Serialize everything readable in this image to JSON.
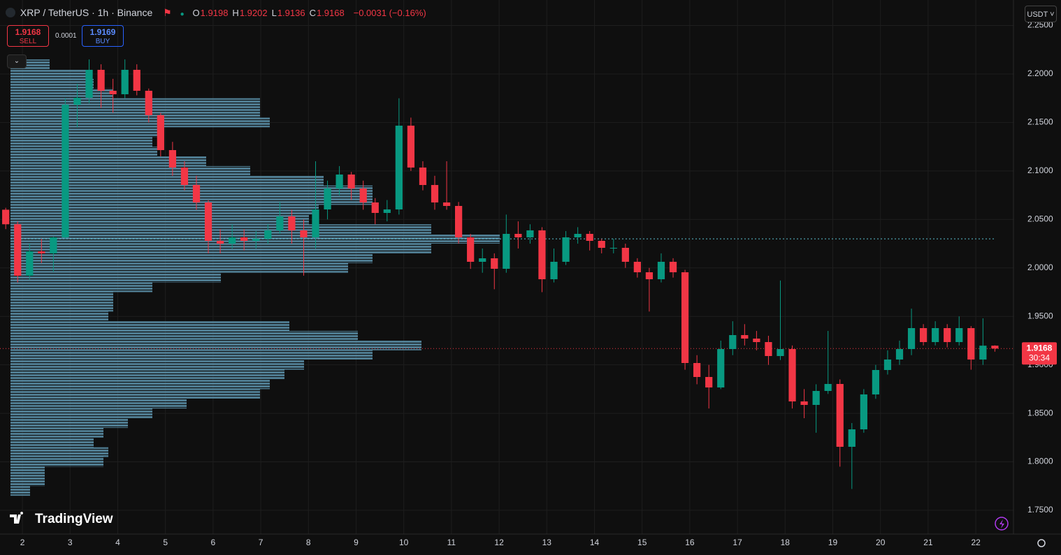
{
  "header": {
    "symbol": "XRP / TetherUS · 1h · Binance",
    "ohlc": [
      {
        "label": "O",
        "value": "1.9198"
      },
      {
        "label": "H",
        "value": "1.9202"
      },
      {
        "label": "L",
        "value": "1.9136"
      },
      {
        "label": "C",
        "value": "1.9168"
      }
    ],
    "change": "−0.0031 (−0.16%)",
    "sell_price": "1.9168",
    "sell_label": "SELL",
    "spread": "0.0001",
    "buy_price": "1.9169",
    "buy_label": "BUY",
    "currency": "USDT",
    "brand": "TradingView"
  },
  "chart_data": {
    "type": "candlestick",
    "up_color": "#089981",
    "down_color": "#f23645",
    "x": [
      1.65,
      1.9,
      2.15,
      2.4,
      2.65,
      2.9,
      3.15,
      3.4,
      3.65,
      3.9,
      4.15,
      4.4,
      4.65,
      4.9,
      5.15,
      5.4,
      5.65,
      5.9,
      6.15,
      6.4,
      6.65,
      6.9,
      7.15,
      7.4,
      7.65,
      7.9,
      8.15,
      8.4,
      8.65,
      8.9,
      9.15,
      9.4,
      9.65,
      9.9,
      10.15,
      10.4,
      10.65,
      10.9,
      11.15,
      11.4,
      11.65,
      11.9,
      12.15,
      12.4,
      12.65,
      12.9,
      13.15,
      13.4,
      13.65,
      13.9,
      14.15,
      14.4,
      14.65,
      14.9,
      15.15,
      15.4,
      15.65,
      15.9,
      16.15,
      16.4,
      16.65,
      16.9,
      17.15,
      17.4,
      17.65,
      17.9,
      18.15,
      18.4,
      18.65,
      18.9,
      19.15,
      19.4,
      19.65,
      19.9,
      20.15,
      20.4,
      20.65,
      20.9,
      21.15,
      21.4,
      21.65,
      21.9,
      22.15,
      22.4
    ],
    "open": [
      2.06,
      2.045,
      1.9919,
      2.0171,
      2.015,
      2.0315,
      2.1683,
      2.1755,
      2.2043,
      2.1827,
      2.1791,
      2.2043,
      2.1827,
      2.1575,
      2.1215,
      2.1035,
      2.0855,
      2.0675,
      2.0279,
      2.025,
      2.0315,
      2.0279,
      2.03,
      2.0387,
      2.0531,
      2.0387,
      2.0315,
      2.0603,
      2.0819,
      2.0963,
      2.0819,
      2.0675,
      2.0567,
      2.0603,
      2.1467,
      2.1035,
      2.0855,
      2.0675,
      2.0639,
      2.0315,
      2.0063,
      2.0099,
      1.9991,
      2.0351,
      2.0315,
      2.0387,
      1.9883,
      2.0063,
      2.0315,
      2.0351,
      2.0279,
      2.0207,
      2.0207,
      2.0063,
      1.9955,
      1.9883,
      2.0063,
      1.9955,
      1.9019,
      1.8875,
      1.8767,
      1.9163,
      1.9307,
      1.9271,
      1.9235,
      1.9091,
      1.9163,
      1.8623,
      1.8587,
      1.8731,
      1.8803,
      1.8155,
      1.8335,
      1.8695,
      1.8947,
      1.9055,
      1.9163,
      1.9379,
      1.9235,
      1.9379,
      1.9235,
      1.9379,
      1.9055,
      1.9198
    ],
    "high": [
      2.062,
      2.048,
      2.025,
      2.03,
      2.032,
      2.175,
      2.19,
      2.215,
      2.21,
      2.195,
      2.215,
      2.21,
      2.185,
      2.16,
      2.13,
      2.11,
      2.095,
      2.07,
      2.04,
      2.045,
      2.04,
      2.038,
      2.045,
      2.068,
      2.06,
      2.05,
      2.11,
      2.09,
      2.105,
      2.099,
      2.09,
      2.072,
      2.07,
      2.175,
      2.155,
      2.11,
      2.095,
      2.11,
      2.068,
      2.035,
      2.02,
      2.015,
      2.055,
      2.048,
      2.045,
      2.042,
      2.02,
      2.038,
      2.042,
      2.038,
      2.03,
      2.03,
      2.025,
      2.01,
      2.0,
      2.015,
      2.01,
      1.998,
      1.91,
      1.9,
      1.925,
      1.945,
      1.942,
      1.935,
      1.93,
      1.987,
      1.92,
      1.875,
      1.88,
      1.935,
      1.885,
      1.84,
      1.875,
      1.9,
      1.915,
      1.925,
      1.958,
      1.942,
      1.945,
      1.942,
      1.95,
      1.94,
      1.948,
      1.9202
    ],
    "low": [
      2.04,
      1.985,
      1.988,
      2.005,
      1.996,
      2.03,
      2.145,
      2.17,
      2.165,
      2.16,
      2.175,
      2.178,
      2.15,
      2.115,
      2.095,
      2.08,
      2.06,
      2.015,
      2.015,
      2.02,
      2.018,
      2.02,
      2.025,
      2.035,
      2.025,
      1.992,
      2.02,
      2.05,
      2.075,
      2.07,
      2.06,
      2.045,
      2.048,
      2.055,
      2.1,
      2.08,
      2.06,
      2.06,
      2.025,
      1.999,
      1.995,
      1.978,
      1.995,
      2.02,
      2.025,
      1.975,
      1.985,
      2.003,
      2.025,
      2.018,
      2.015,
      2.015,
      2.0,
      1.99,
      1.955,
      1.985,
      1.99,
      1.895,
      1.88,
      1.855,
      1.875,
      1.91,
      1.92,
      1.915,
      1.9,
      1.905,
      1.855,
      1.845,
      1.83,
      1.87,
      1.795,
      1.772,
      1.83,
      1.865,
      1.89,
      1.9,
      1.91,
      1.92,
      1.92,
      1.918,
      1.92,
      1.895,
      1.9,
      1.9136
    ],
    "close": [
      2.045,
      1.9919,
      2.0171,
      2.015,
      2.0315,
      2.1683,
      2.1755,
      2.2043,
      2.1827,
      2.1791,
      2.2043,
      2.1827,
      2.1575,
      2.1215,
      2.1035,
      2.0855,
      2.0675,
      2.0279,
      2.025,
      2.0315,
      2.0279,
      2.03,
      2.0387,
      2.0531,
      2.0387,
      2.0315,
      2.0603,
      2.0819,
      2.0963,
      2.0819,
      2.0675,
      2.0567,
      2.0603,
      2.1467,
      2.1035,
      2.0855,
      2.0675,
      2.0639,
      2.0315,
      2.0063,
      2.0099,
      1.9991,
      2.0351,
      2.0315,
      2.0387,
      1.9883,
      2.0063,
      2.0315,
      2.0351,
      2.0279,
      2.0207,
      2.0207,
      2.0063,
      1.9955,
      1.9883,
      2.0063,
      1.9955,
      1.9019,
      1.8875,
      1.8767,
      1.9163,
      1.9307,
      1.9271,
      1.9235,
      1.9091,
      1.9163,
      1.8623,
      1.8587,
      1.8731,
      1.8803,
      1.8155,
      1.8335,
      1.8695,
      1.8947,
      1.9055,
      1.9163,
      1.9379,
      1.9235,
      1.9379,
      1.9235,
      1.9379,
      1.9055,
      1.9198,
      1.9168
    ],
    "xlim": [
      1.53,
      22.79
    ],
    "xticks": [
      2,
      3,
      4,
      5,
      6,
      7,
      8,
      9,
      10,
      11,
      12,
      13,
      14,
      15,
      16,
      17,
      18,
      19,
      20,
      21,
      22
    ],
    "ylim": [
      1.7255,
      2.2763
    ],
    "yticks": [
      {
        "value": 1.75,
        "label": "1.7500"
      },
      {
        "value": 1.8,
        "label": "1.8000"
      },
      {
        "value": 1.85,
        "label": "1.8500"
      },
      {
        "value": 1.9,
        "label": "1.9000"
      },
      {
        "value": 1.95,
        "label": "1.9500"
      },
      {
        "value": 2.0,
        "label": "2.0000"
      },
      {
        "value": 2.05,
        "label": "2.0500"
      },
      {
        "value": 2.1,
        "label": "2.1000"
      },
      {
        "value": 2.15,
        "label": "2.1500"
      },
      {
        "value": 2.2,
        "label": "2.2000"
      },
      {
        "value": 2.25,
        "label": "2.2500"
      }
    ],
    "grid": true,
    "last_price": 1.9168,
    "countdown": "30:34",
    "poc": 2.03,
    "poc_color": "#5bc0d0",
    "volume_profile": {
      "color": "#5a8fa8",
      "levels": [
        2.21,
        2.2,
        2.19,
        2.18,
        2.17,
        2.16,
        2.15,
        2.14,
        2.13,
        2.12,
        2.11,
        2.1,
        2.09,
        2.08,
        2.07,
        2.06,
        2.05,
        2.04,
        2.03,
        2.02,
        2.01,
        2.0,
        1.99,
        1.98,
        1.97,
        1.96,
        1.95,
        1.94,
        1.93,
        1.92,
        1.91,
        1.9,
        1.89,
        1.88,
        1.87,
        1.86,
        1.85,
        1.84,
        1.83,
        1.82,
        1.81,
        1.8,
        1.79,
        1.78,
        1.77
      ],
      "values": [
        8,
        16,
        17,
        21,
        51,
        51,
        53,
        31,
        29,
        30,
        40,
        49,
        64,
        74,
        74,
        63,
        61,
        86,
        100,
        86,
        74,
        69,
        43,
        29,
        21,
        21,
        20,
        57,
        71,
        84,
        74,
        60,
        56,
        53,
        51,
        36,
        29,
        24,
        19,
        17,
        20,
        19,
        7,
        7,
        4
      ]
    }
  }
}
